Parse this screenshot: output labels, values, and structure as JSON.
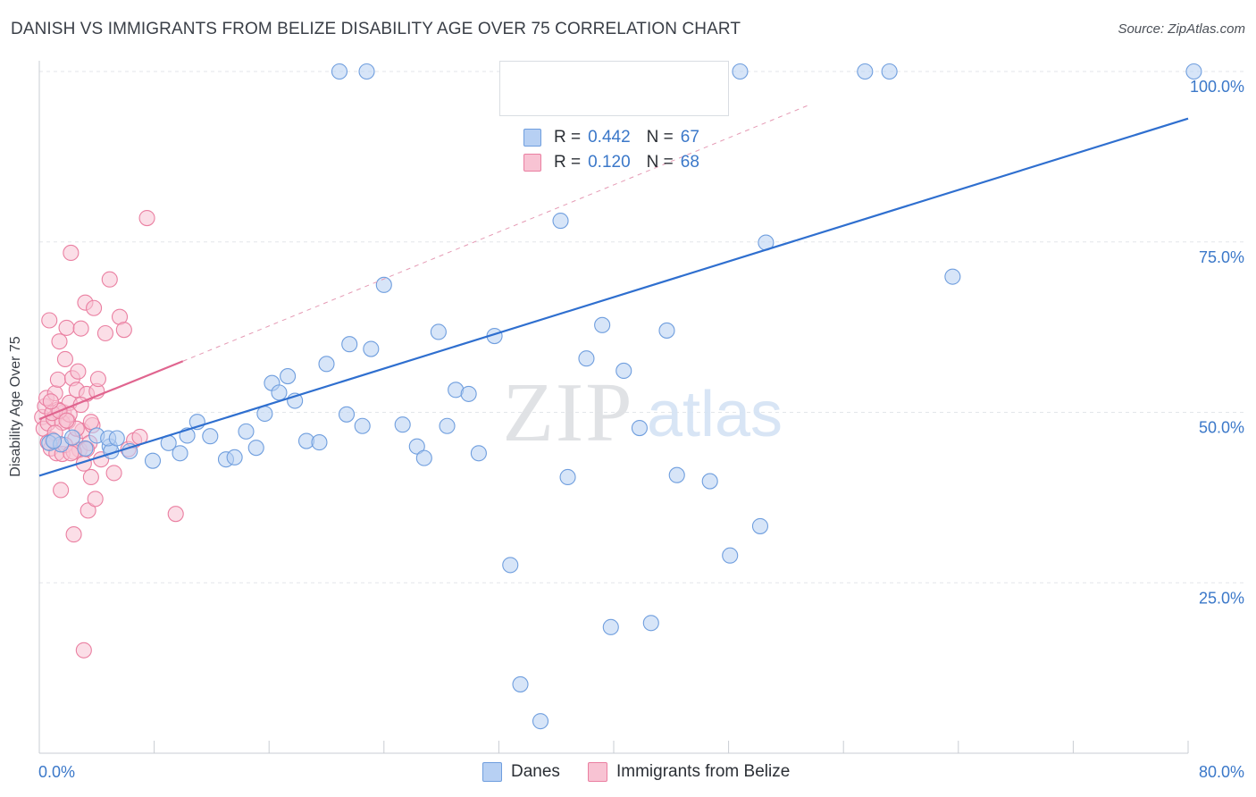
{
  "header": {
    "title": "DANISH VS IMMIGRANTS FROM BELIZE DISABILITY AGE OVER 75 CORRELATION CHART",
    "source": "Source: ZipAtlas.com"
  },
  "watermark": {
    "zip": "ZIP",
    "atlas": "atlas"
  },
  "legend": {
    "r_label": "R =",
    "n_label": "N =",
    "series": [
      {
        "name": "Danes",
        "r": "0.442",
        "n": "67",
        "fill": "#b7d0f3",
        "stroke": "#6f9ede"
      },
      {
        "name": "Immigrants from Belize",
        "r": "0.120",
        "n": "68",
        "fill": "#f8c3d3",
        "stroke": "#ea7fa1"
      }
    ]
  },
  "colors": {
    "danes_line": "#2f6fcf",
    "belize_line": "#e0658f",
    "belize_dash": "#e59ab4",
    "grid": "#e3e6ea",
    "axis_tick_text": "#3b78c9"
  },
  "chart_data": {
    "type": "scatter",
    "title": "DANISH VS IMMIGRANTS FROM BELIZE DISABILITY AGE OVER 75 CORRELATION CHART",
    "xlabel": "",
    "ylabel": "Disability Age Over 75",
    "xlim": [
      0,
      80
    ],
    "ylim": [
      0,
      100
    ],
    "x_tick_labels": [
      "0.0%",
      "80.0%"
    ],
    "y_ticks": [
      25,
      50,
      75,
      100
    ],
    "y_tick_labels": [
      "25.0%",
      "50.0%",
      "75.0%",
      "100.0%"
    ],
    "grid": true,
    "series": [
      {
        "name": "Danes",
        "trend": {
          "x": [
            0,
            80
          ],
          "y": [
            40.7,
            93.1
          ]
        },
        "points": [
          [
            0.7,
            45.5
          ],
          [
            1.5,
            45.3
          ],
          [
            2.3,
            46.3
          ],
          [
            3.2,
            44.7
          ],
          [
            4.0,
            46.6
          ],
          [
            4.9,
            45.0
          ],
          [
            5.0,
            44.3
          ],
          [
            4.8,
            46.2
          ],
          [
            6.3,
            44.3
          ],
          [
            5.4,
            46.2
          ],
          [
            7.9,
            42.9
          ],
          [
            9.0,
            45.5
          ],
          [
            9.8,
            44.0
          ],
          [
            10.3,
            46.6
          ],
          [
            11.9,
            46.5
          ],
          [
            11.0,
            48.6
          ],
          [
            13.0,
            43.1
          ],
          [
            13.6,
            43.4
          ],
          [
            14.4,
            47.2
          ],
          [
            15.1,
            44.8
          ],
          [
            15.7,
            49.8
          ],
          [
            16.2,
            54.3
          ],
          [
            16.7,
            52.9
          ],
          [
            17.3,
            55.3
          ],
          [
            17.8,
            51.7
          ],
          [
            18.6,
            45.8
          ],
          [
            19.5,
            45.6
          ],
          [
            20.0,
            57.1
          ],
          [
            21.6,
            60.0
          ],
          [
            21.4,
            49.7
          ],
          [
            22.5,
            48.0
          ],
          [
            23.1,
            59.3
          ],
          [
            24.0,
            68.7
          ],
          [
            25.3,
            48.2
          ],
          [
            26.3,
            45.0
          ],
          [
            26.8,
            43.3
          ],
          [
            27.8,
            61.8
          ],
          [
            28.4,
            48.0
          ],
          [
            29.0,
            53.3
          ],
          [
            29.9,
            52.7
          ],
          [
            30.6,
            44.0
          ],
          [
            31.7,
            61.2
          ],
          [
            32.8,
            27.6
          ],
          [
            33.5,
            10.1
          ],
          [
            34.9,
            4.7
          ],
          [
            36.3,
            78.1
          ],
          [
            36.8,
            40.5
          ],
          [
            38.1,
            57.9
          ],
          [
            39.2,
            62.8
          ],
          [
            39.8,
            18.5
          ],
          [
            40.7,
            56.1
          ],
          [
            41.8,
            47.7
          ],
          [
            42.6,
            19.1
          ],
          [
            43.7,
            62.0
          ],
          [
            44.4,
            40.8
          ],
          [
            46.7,
            39.9
          ],
          [
            48.1,
            29.0
          ],
          [
            50.2,
            33.3
          ],
          [
            50.6,
            74.9
          ],
          [
            63.6,
            69.9
          ],
          [
            20.9,
            100
          ],
          [
            22.8,
            100
          ],
          [
            48.8,
            100
          ],
          [
            57.5,
            100
          ],
          [
            59.2,
            100
          ],
          [
            80.4,
            100
          ],
          [
            1.0,
            45.8
          ]
        ]
      },
      {
        "name": "Immigrants from Belize",
        "trend": {
          "x": [
            0,
            10
          ],
          "y": [
            49.0,
            57.5
          ],
          "extended_to": [
            53.5,
            95.0
          ]
        },
        "points": [
          [
            0.2,
            49.3
          ],
          [
            0.3,
            47.6
          ],
          [
            0.4,
            50.9
          ],
          [
            0.5,
            52.1
          ],
          [
            0.6,
            48.4
          ],
          [
            0.7,
            63.5
          ],
          [
            0.8,
            44.7
          ],
          [
            0.9,
            46.0
          ],
          [
            1.0,
            49.1
          ],
          [
            1.1,
            52.8
          ],
          [
            1.2,
            44.0
          ],
          [
            1.3,
            54.8
          ],
          [
            1.4,
            60.4
          ],
          [
            1.5,
            38.6
          ],
          [
            1.6,
            43.9
          ],
          [
            1.7,
            50.0
          ],
          [
            1.8,
            57.8
          ],
          [
            1.9,
            62.4
          ],
          [
            2.0,
            48.7
          ],
          [
            2.1,
            51.4
          ],
          [
            2.2,
            73.4
          ],
          [
            2.3,
            55.0
          ],
          [
            2.4,
            32.1
          ],
          [
            2.5,
            46.1
          ],
          [
            2.6,
            53.3
          ],
          [
            2.7,
            56.0
          ],
          [
            2.8,
            44.5
          ],
          [
            2.9,
            62.3
          ],
          [
            3.0,
            47.3
          ],
          [
            3.1,
            42.5
          ],
          [
            3.2,
            66.1
          ],
          [
            3.3,
            52.7
          ],
          [
            3.4,
            35.6
          ],
          [
            3.5,
            45.5
          ],
          [
            3.6,
            40.5
          ],
          [
            3.7,
            48.1
          ],
          [
            3.8,
            65.3
          ],
          [
            3.9,
            37.3
          ],
          [
            4.0,
            53.1
          ],
          [
            4.1,
            54.9
          ],
          [
            1.3,
            50.4
          ],
          [
            1.6,
            48.5
          ],
          [
            1.8,
            45.2
          ],
          [
            2.1,
            49.7
          ],
          [
            2.6,
            47.6
          ],
          [
            2.9,
            51.1
          ],
          [
            3.3,
            44.6
          ],
          [
            4.3,
            43.1
          ],
          [
            4.6,
            61.6
          ],
          [
            4.9,
            69.5
          ],
          [
            5.2,
            41.1
          ],
          [
            5.6,
            64.0
          ],
          [
            5.9,
            62.1
          ],
          [
            6.2,
            44.6
          ],
          [
            6.6,
            45.9
          ],
          [
            7.0,
            46.4
          ],
          [
            7.5,
            78.5
          ],
          [
            9.5,
            35.1
          ],
          [
            3.1,
            15.1
          ],
          [
            0.9,
            49.9
          ],
          [
            1.1,
            47.0
          ],
          [
            1.4,
            50.2
          ],
          [
            1.9,
            48.8
          ],
          [
            2.4,
            44.2
          ],
          [
            3.6,
            48.6
          ],
          [
            0.6,
            45.6
          ],
          [
            0.8,
            51.6
          ],
          [
            2.2,
            44.0
          ]
        ]
      }
    ]
  }
}
